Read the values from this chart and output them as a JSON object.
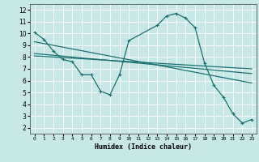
{
  "xlabel": "Humidex (Indice chaleur)",
  "xlim": [
    -0.5,
    23.5
  ],
  "ylim": [
    1.5,
    12.5
  ],
  "xticks": [
    0,
    1,
    2,
    3,
    4,
    5,
    6,
    7,
    8,
    9,
    10,
    11,
    12,
    13,
    14,
    15,
    16,
    17,
    18,
    19,
    20,
    21,
    22,
    23
  ],
  "yticks": [
    2,
    3,
    4,
    5,
    6,
    7,
    8,
    9,
    10,
    11,
    12
  ],
  "bg_color": "#c8e8e8",
  "grid_color": "#ffffff",
  "line_color": "#1a7070",
  "series_main": {
    "x": [
      0,
      1,
      2,
      3,
      4,
      5,
      6,
      7,
      8,
      9,
      10,
      13,
      14,
      15,
      16,
      17,
      18,
      19,
      20,
      21,
      22,
      23
    ],
    "y": [
      10.1,
      9.5,
      8.5,
      7.8,
      7.6,
      6.5,
      6.5,
      5.1,
      4.8,
      6.5,
      9.4,
      10.7,
      11.5,
      11.7,
      11.3,
      10.5,
      7.5,
      5.6,
      4.6,
      3.2,
      2.4,
      2.7
    ]
  },
  "regression_lines": [
    {
      "x0": 0,
      "y0": 9.3,
      "x1": 23,
      "y1": 5.8
    },
    {
      "x0": 0,
      "y0": 8.3,
      "x1": 23,
      "y1": 6.6
    },
    {
      "x0": 0,
      "y0": 8.1,
      "x1": 23,
      "y1": 7.0
    }
  ]
}
